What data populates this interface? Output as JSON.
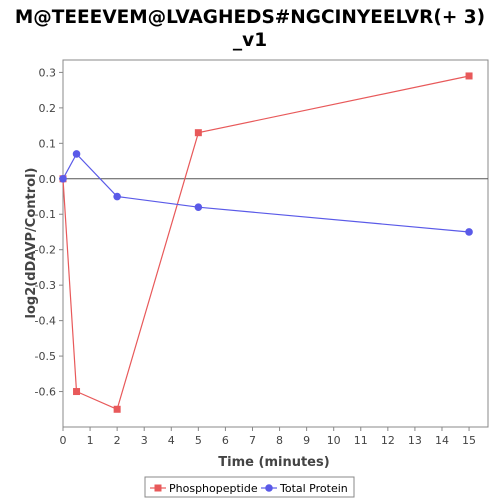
{
  "chart_data": {
    "type": "line",
    "title_line1": "M@TEEEVEM@LVAGHEDS#NGCINYEELVR(+ 3)",
    "title_line2": "_v1",
    "xlabel": "Time (minutes)",
    "ylabel": "log2(dDAVP/Control)",
    "xlim": [
      0,
      15.7
    ],
    "ylim": [
      -0.7,
      0.335
    ],
    "xticks": [
      0,
      1,
      2,
      3,
      4,
      5,
      6,
      7,
      8,
      9,
      10,
      11,
      12,
      13,
      14,
      15
    ],
    "yticks": [
      0.3,
      0.2,
      0.1,
      0.0,
      -0.1,
      -0.2,
      -0.3,
      -0.4,
      -0.5,
      -0.6
    ],
    "ytick_labels": [
      "0.3",
      "0.2",
      "0.1",
      "0.0",
      "-0.1",
      "-0.2",
      "-0.3",
      "-0.4",
      "-0.5",
      "-0.6"
    ],
    "zero_line": true,
    "grid": false,
    "legend_position": "bottom",
    "series": [
      {
        "name": "Phosphopeptide",
        "color": "#e8595a",
        "marker": "square",
        "x": [
          0,
          0.5,
          2,
          5,
          15
        ],
        "y": [
          0.0,
          -0.6,
          -0.65,
          0.13,
          0.29
        ]
      },
      {
        "name": "Total Protein",
        "color": "#5a5ae8",
        "marker": "circle",
        "x": [
          0,
          0.5,
          2,
          5,
          15
        ],
        "y": [
          0.0,
          0.07,
          -0.05,
          -0.08,
          -0.15
        ]
      }
    ]
  }
}
